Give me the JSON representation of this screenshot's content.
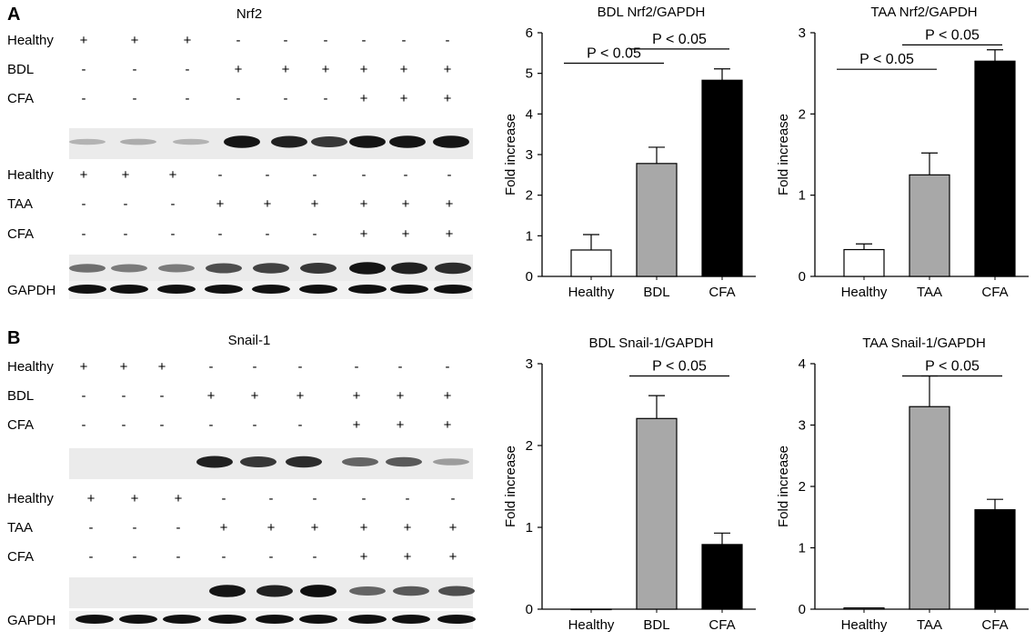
{
  "panels": [
    {
      "id": "A",
      "letter": "A",
      "blot_title": "Nrf2",
      "treat_top": [
        {
          "label": "Healthy",
          "signs": [
            "+",
            "+",
            "+",
            "-",
            "-",
            "-",
            "-",
            "-",
            "-"
          ]
        },
        {
          "label": "BDL",
          "signs": [
            "-",
            "-",
            "-",
            "+",
            "+",
            "+",
            "+",
            "+",
            "+"
          ]
        },
        {
          "label": "CFA",
          "signs": [
            "-",
            "-",
            "-",
            "-",
            "-",
            "-",
            "+",
            "+",
            "+"
          ]
        }
      ],
      "treat_bottom": [
        {
          "label": "Healthy",
          "signs": [
            "+",
            "+",
            "+",
            "-",
            "-",
            "-",
            "-",
            "-",
            "-"
          ]
        },
        {
          "label": "TAA",
          "signs": [
            "-",
            "-",
            "-",
            "+",
            "+",
            "+",
            "+",
            "+",
            "+"
          ]
        },
        {
          "label": "CFA",
          "signs": [
            "-",
            "-",
            "-",
            "-",
            "-",
            "-",
            "+",
            "+",
            "+"
          ]
        }
      ],
      "band_label": "GAPDH"
    },
    {
      "id": "B",
      "letter": "B",
      "blot_title": "Snail-1",
      "treat_top": [
        {
          "label": "Healthy",
          "signs": [
            "+",
            "+",
            "+",
            "-",
            "-",
            "-",
            "-",
            "-",
            "-"
          ]
        },
        {
          "label": "BDL",
          "signs": [
            "-",
            "-",
            "-",
            "+",
            "+",
            "+",
            "+",
            "+",
            "+"
          ]
        },
        {
          "label": "CFA",
          "signs": [
            "-",
            "-",
            "-",
            "-",
            "-",
            "-",
            "+",
            "+",
            "+"
          ]
        }
      ],
      "treat_bottom": [
        {
          "label": "Healthy",
          "signs": [
            "+",
            "+",
            "+",
            "-",
            "-",
            "-",
            "-",
            "-",
            "-"
          ]
        },
        {
          "label": "TAA",
          "signs": [
            "-",
            "-",
            "-",
            "+",
            "+",
            "+",
            "+",
            "+",
            "+"
          ]
        },
        {
          "label": "CFA",
          "signs": [
            "-",
            "-",
            "-",
            "-",
            "-",
            "-",
            "+",
            "+",
            "+"
          ]
        }
      ],
      "band_label": "GAPDH"
    }
  ],
  "blot_intensity": {
    "nrf2_bdl": [
      0.25,
      0.28,
      0.25,
      0.95,
      0.9,
      0.8,
      0.95,
      0.95,
      0.95
    ],
    "nrf2_taa": [
      0.55,
      0.5,
      0.5,
      0.7,
      0.75,
      0.8,
      0.95,
      0.9,
      0.85
    ],
    "snail_bdl": [
      0.0,
      0.0,
      0.0,
      0.9,
      0.8,
      0.85,
      0.6,
      0.65,
      0.35
    ],
    "snail_taa": [
      0.0,
      0.0,
      0.0,
      0.95,
      0.9,
      0.98,
      0.6,
      0.65,
      0.7
    ],
    "gapdh": [
      0.9,
      0.9,
      0.9,
      0.9,
      0.9,
      0.9,
      0.9,
      0.9,
      0.9
    ]
  },
  "colors": {
    "healthy": "#ffffff",
    "mid": "#a8a8a8",
    "cfa": "#000000"
  },
  "chart_data": [
    {
      "type": "bar",
      "title": "BDL Nrf2/GAPDH",
      "ylabel": "Fold increase",
      "categories": [
        "Healthy",
        "BDL",
        "CFA"
      ],
      "values": [
        0.65,
        2.78,
        4.83
      ],
      "errors": [
        0.38,
        0.4,
        0.28
      ],
      "ylim": [
        0,
        6
      ],
      "yticks": [
        0,
        1,
        2,
        3,
        4,
        5,
        6
      ],
      "sig": [
        {
          "text": "P < 0.05",
          "from": 0,
          "to": 1,
          "y": 5.25
        },
        {
          "text": "P < 0.05",
          "from": 1,
          "to": 2,
          "y": 5.6
        }
      ]
    },
    {
      "type": "bar",
      "title": "TAA Nrf2/GAPDH",
      "ylabel": "Fold increase",
      "categories": [
        "Healthy",
        "TAA",
        "CFA"
      ],
      "values": [
        0.33,
        1.25,
        2.65
      ],
      "errors": [
        0.07,
        0.27,
        0.14
      ],
      "ylim": [
        0,
        3
      ],
      "yticks": [
        0,
        1,
        2,
        3
      ],
      "sig": [
        {
          "text": "P < 0.05",
          "from": 0,
          "to": 1,
          "y": 2.55
        },
        {
          "text": "P < 0.05",
          "from": 1,
          "to": 2,
          "y": 2.85
        }
      ]
    },
    {
      "type": "bar",
      "title": "BDL Snail-1/GAPDH",
      "ylabel": "Fold increase",
      "categories": [
        "Healthy",
        "BDL",
        "CFA"
      ],
      "values": [
        0,
        2.33,
        0.79
      ],
      "errors": [
        0,
        0.28,
        0.14
      ],
      "ylim": [
        0,
        3
      ],
      "yticks": [
        0,
        1,
        2,
        3
      ],
      "sig": [
        {
          "text": "P < 0.05",
          "from": 1,
          "to": 2,
          "y": 2.85
        }
      ]
    },
    {
      "type": "bar",
      "title": "TAA Snail-1/GAPDH",
      "ylabel": "Fold increase",
      "categories": [
        "Healthy",
        "TAA",
        "CFA"
      ],
      "values": [
        0.02,
        3.3,
        1.62
      ],
      "errors": [
        0,
        0.5,
        0.17
      ],
      "ylim": [
        0,
        4
      ],
      "yticks": [
        0,
        1,
        2,
        3,
        4
      ],
      "sig": [
        {
          "text": "P < 0.05",
          "from": 1,
          "to": 2,
          "y": 3.8
        }
      ]
    }
  ]
}
